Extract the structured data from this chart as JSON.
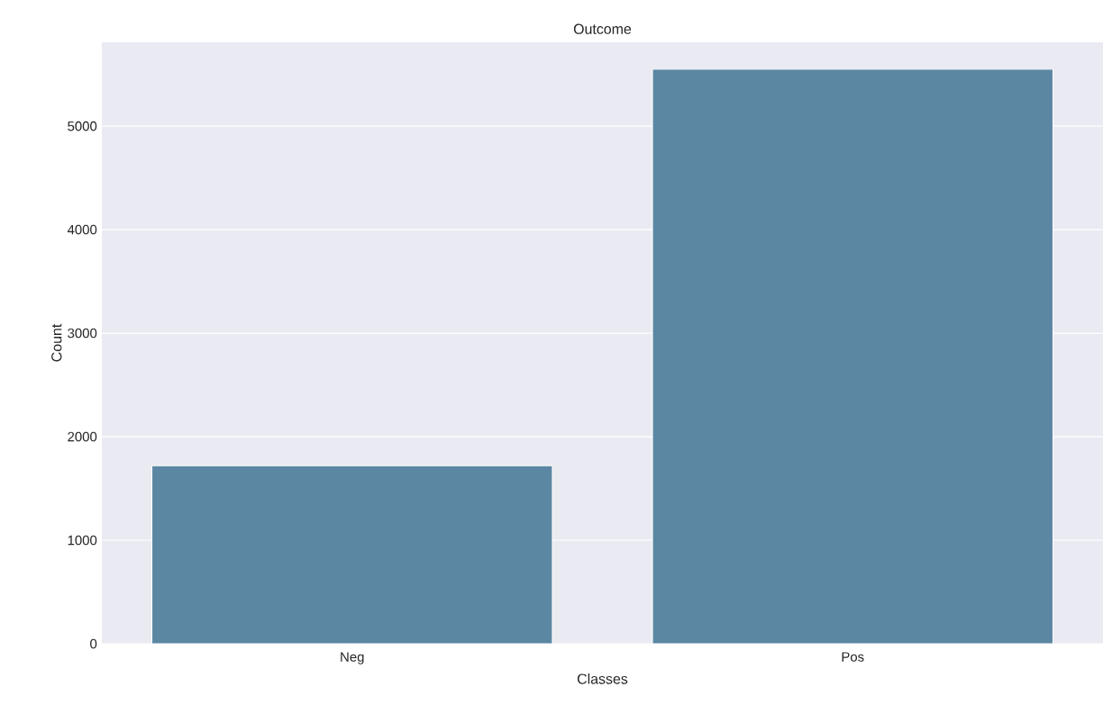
{
  "chart_data": {
    "type": "bar",
    "title": "Outcome",
    "xlabel": "Classes",
    "ylabel": "Count",
    "categories": [
      "Neg",
      "Pos"
    ],
    "values": [
      1720,
      5550
    ],
    "color": "#5b87a2",
    "ylim": [
      0,
      5810
    ],
    "yticks": [
      0,
      1000,
      2000,
      3000,
      4000,
      5000
    ],
    "grid": "y"
  }
}
